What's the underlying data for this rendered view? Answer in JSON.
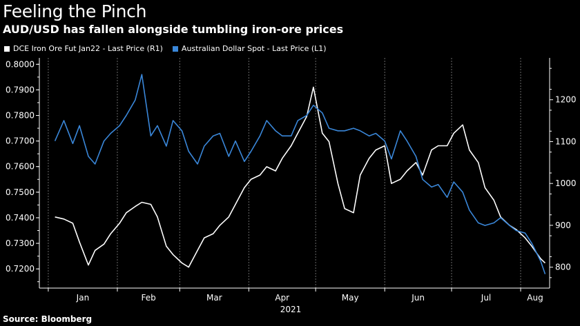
{
  "chart_data": {
    "type": "line",
    "title": "Feeling the Pinch",
    "subtitle": "AUD/USD has fallen alongside tumbling iron-ore prices",
    "source": "Source: Bloomberg",
    "xlabel": "2021",
    "x_ticks": [
      "Jan",
      "Feb",
      "Mar",
      "Apr",
      "May",
      "Jun",
      "Jul",
      "Aug"
    ],
    "y_left_ticks": [
      "0.8000",
      "0.7900",
      "0.7800",
      "0.7700",
      "0.7600",
      "0.7500",
      "0.7400",
      "0.7300",
      "0.7200"
    ],
    "y_right_ticks": [
      "1200",
      "1100",
      "1000",
      "900",
      "800"
    ],
    "y_left_range": [
      0.7125,
      0.8025
    ],
    "y_right_range": [
      750,
      1300
    ],
    "x_range": [
      "2020-12-28",
      "2021-08-14"
    ],
    "legend_position": "top-left",
    "grid": "vertical dashed",
    "series": [
      {
        "name": "DCE Iron Ore Fut  Jan22 - Last Price (R1)",
        "axis": "right",
        "color": "#ffffff",
        "x": [
          "2021-01-04",
          "2021-01-08",
          "2021-01-12",
          "2021-01-15",
          "2021-01-19",
          "2021-01-22",
          "2021-01-26",
          "2021-01-29",
          "2021-02-02",
          "2021-02-05",
          "2021-02-09",
          "2021-02-12",
          "2021-02-16",
          "2021-02-19",
          "2021-02-23",
          "2021-02-26",
          "2021-03-02",
          "2021-03-05",
          "2021-03-09",
          "2021-03-12",
          "2021-03-16",
          "2021-03-19",
          "2021-03-23",
          "2021-03-26",
          "2021-03-30",
          "2021-04-02",
          "2021-04-06",
          "2021-04-09",
          "2021-04-13",
          "2021-04-16",
          "2021-04-20",
          "2021-04-23",
          "2021-04-27",
          "2021-04-30",
          "2021-05-04",
          "2021-05-07",
          "2021-05-11",
          "2021-05-14",
          "2021-05-18",
          "2021-05-21",
          "2021-05-25",
          "2021-05-28",
          "2021-06-01",
          "2021-06-04",
          "2021-06-08",
          "2021-06-11",
          "2021-06-15",
          "2021-06-18",
          "2021-06-22",
          "2021-06-25",
          "2021-06-29",
          "2021-07-02",
          "2021-07-06",
          "2021-07-09",
          "2021-07-13",
          "2021-07-16",
          "2021-07-20",
          "2021-07-23",
          "2021-07-27",
          "2021-07-30",
          "2021-08-03",
          "2021-08-06",
          "2021-08-10",
          "2021-08-12"
        ],
        "values": [
          920,
          915,
          905,
          860,
          805,
          840,
          855,
          880,
          905,
          930,
          945,
          955,
          950,
          920,
          850,
          830,
          810,
          800,
          840,
          870,
          880,
          900,
          920,
          950,
          990,
          1010,
          1020,
          1040,
          1030,
          1060,
          1090,
          1120,
          1160,
          1230,
          1120,
          1100,
          1000,
          940,
          930,
          1020,
          1060,
          1080,
          1090,
          1000,
          1010,
          1030,
          1050,
          1020,
          1080,
          1090,
          1090,
          1120,
          1140,
          1080,
          1050,
          990,
          960,
          920,
          900,
          890,
          870,
          850,
          820,
          810
        ]
      },
      {
        "name": "Australian Dollar Spot - Last Price (L1)",
        "axis": "left",
        "color": "#3a87d9",
        "x": [
          "2021-01-04",
          "2021-01-08",
          "2021-01-12",
          "2021-01-15",
          "2021-01-19",
          "2021-01-22",
          "2021-01-26",
          "2021-01-29",
          "2021-02-02",
          "2021-02-05",
          "2021-02-09",
          "2021-02-12",
          "2021-02-16",
          "2021-02-19",
          "2021-02-23",
          "2021-02-26",
          "2021-03-02",
          "2021-03-05",
          "2021-03-09",
          "2021-03-12",
          "2021-03-16",
          "2021-03-19",
          "2021-03-23",
          "2021-03-26",
          "2021-03-30",
          "2021-04-02",
          "2021-04-06",
          "2021-04-09",
          "2021-04-13",
          "2021-04-16",
          "2021-04-20",
          "2021-04-23",
          "2021-04-27",
          "2021-04-30",
          "2021-05-04",
          "2021-05-07",
          "2021-05-11",
          "2021-05-14",
          "2021-05-18",
          "2021-05-21",
          "2021-05-25",
          "2021-05-28",
          "2021-06-01",
          "2021-06-04",
          "2021-06-08",
          "2021-06-11",
          "2021-06-15",
          "2021-06-18",
          "2021-06-22",
          "2021-06-25",
          "2021-06-29",
          "2021-07-02",
          "2021-07-06",
          "2021-07-09",
          "2021-07-13",
          "2021-07-16",
          "2021-07-20",
          "2021-07-23",
          "2021-07-27",
          "2021-07-30",
          "2021-08-03",
          "2021-08-06",
          "2021-08-10",
          "2021-08-12"
        ],
        "values": [
          0.77,
          0.778,
          0.769,
          0.776,
          0.764,
          0.761,
          0.77,
          0.773,
          0.776,
          0.78,
          0.786,
          0.796,
          0.772,
          0.776,
          0.768,
          0.778,
          0.774,
          0.766,
          0.761,
          0.768,
          0.772,
          0.773,
          0.764,
          0.77,
          0.762,
          0.766,
          0.772,
          0.778,
          0.774,
          0.772,
          0.772,
          0.778,
          0.78,
          0.784,
          0.781,
          0.775,
          0.774,
          0.774,
          0.775,
          0.774,
          0.772,
          0.773,
          0.77,
          0.763,
          0.774,
          0.77,
          0.764,
          0.755,
          0.752,
          0.753,
          0.748,
          0.754,
          0.75,
          0.743,
          0.738,
          0.737,
          0.738,
          0.74,
          0.737,
          0.735,
          0.734,
          0.73,
          0.723,
          0.718
        ]
      }
    ]
  }
}
